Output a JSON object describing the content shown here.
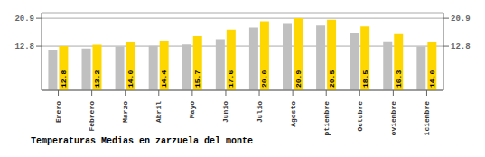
{
  "chart_data": {
    "type": "bar",
    "title": "Temperaturas Medias en zarzuela del monte",
    "categories": [
      "Enero",
      "Febrero",
      "Marzo",
      "Abril",
      "Mayo",
      "Junio",
      "Julio",
      "Agosto",
      "Septiembre",
      "Octubre",
      "Noviembre",
      "Diciembre"
    ],
    "series": [
      {
        "color": "#C0C0C0",
        "values": [
          11.8,
          12.1,
          12.7,
          12.9,
          13.3,
          14.8,
          18.2,
          19.2,
          18.8,
          16.5,
          14.2,
          12.7
        ]
      },
      {
        "color": "#FFD700",
        "values": [
          12.8,
          13.2,
          14.0,
          14.4,
          15.7,
          17.6,
          20.0,
          20.9,
          20.5,
          18.5,
          16.3,
          14.0
        ],
        "data_labels": true,
        "value_labels": [
          "12.8",
          "13.2",
          "14.0",
          "14.4",
          "15.7",
          "17.6",
          "20.0",
          "20.9",
          "20.5",
          "18.5",
          "16.3",
          "14.0"
        ]
      }
    ],
    "ylim": [
      0.0,
      22.5
    ],
    "yticks": [
      12.8,
      20.9
    ],
    "y2lim": [
      0.0,
      22.5
    ],
    "y2ticks": [
      12.8,
      20.9
    ],
    "grid": true
  }
}
